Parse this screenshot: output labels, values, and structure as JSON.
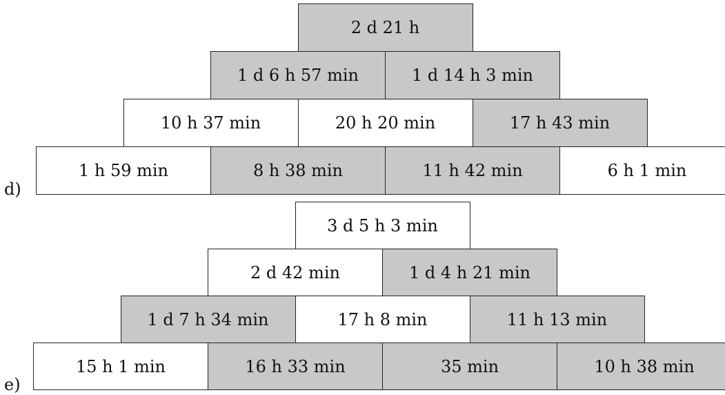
{
  "pyramids": [
    {
      "label": "d)",
      "rows": [
        [
          {
            "text": "2 d 21 h",
            "shaded": true
          }
        ],
        [
          {
            "text": "1 d 6 h 57 min",
            "shaded": true
          },
          {
            "text": "1 d 14 h 3 min",
            "shaded": true
          }
        ],
        [
          {
            "text": "10 h 37 min",
            "shaded": false
          },
          {
            "text": "20 h 20 min",
            "shaded": false
          },
          {
            "text": "17 h 43 min",
            "shaded": true
          }
        ],
        [
          {
            "text": "1 h 59 min",
            "shaded": false
          },
          {
            "text": "8 h 38 min",
            "shaded": true
          },
          {
            "text": "11 h 42 min",
            "shaded": true
          },
          {
            "text": "6 h 1 min",
            "shaded": false
          }
        ]
      ]
    },
    {
      "label": "e)",
      "rows": [
        [
          {
            "text": "3 d 5 h 3 min",
            "shaded": false
          }
        ],
        [
          {
            "text": "2 d 42 min",
            "shaded": false
          },
          {
            "text": "1 d 4 h 21 min",
            "shaded": true
          }
        ],
        [
          {
            "text": "1 d 7 h 34 min",
            "shaded": true
          },
          {
            "text": "17 h 8 min",
            "shaded": false
          },
          {
            "text": "11 h 13 min",
            "shaded": true
          }
        ],
        [
          {
            "text": "15 h 1 min",
            "shaded": false
          },
          {
            "text": "16 h 33 min",
            "shaded": true
          },
          {
            "text": "35 min",
            "shaded": true
          },
          {
            "text": "10 h 38 min",
            "shaded": true
          }
        ]
      ]
    }
  ]
}
